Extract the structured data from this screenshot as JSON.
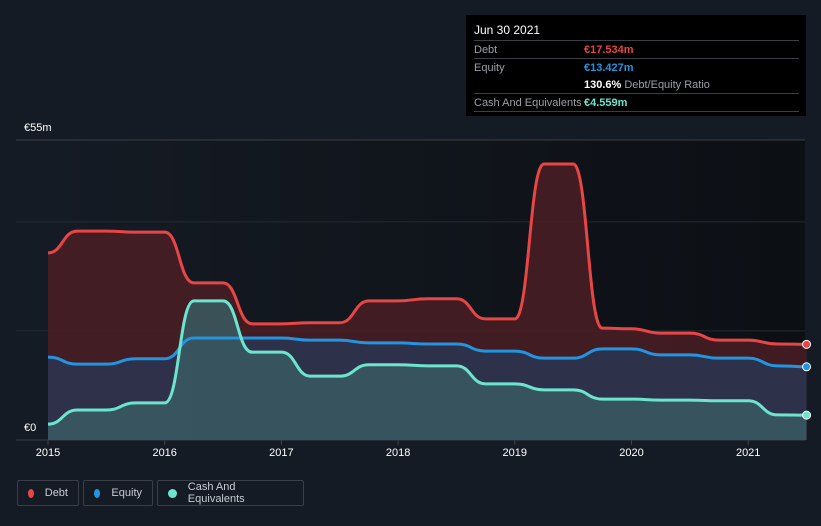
{
  "tooltip": {
    "date": "Jun 30 2021",
    "debt_label": "Debt",
    "debt_value": "€17.534m",
    "equity_label": "Equity",
    "equity_value": "€13.427m",
    "ratio_value": "130.6%",
    "ratio_label": "Debt/Equity Ratio",
    "cash_label": "Cash And Equivalents",
    "cash_value": "€4.559m"
  },
  "legend": [
    {
      "label": "Debt",
      "color": "#e84545"
    },
    {
      "label": "Equity",
      "color": "#2394df"
    },
    {
      "label": "Cash And Equivalents",
      "color": "#6ce5d0"
    }
  ],
  "chart_data": {
    "type": "area",
    "title": "",
    "xlabel": "",
    "ylabel": "",
    "unit": "€m",
    "ylim": [
      0,
      55
    ],
    "xlim": [
      2014.85,
      2021.5
    ],
    "ytick_labels": [
      {
        "value": 55,
        "label": "€55m"
      },
      {
        "value": 0,
        "label": "€0"
      }
    ],
    "gridlines": [
      20,
      40,
      55
    ],
    "xtick_labels": [
      {
        "value": 2015,
        "label": "2015"
      },
      {
        "value": 2016,
        "label": "2016"
      },
      {
        "value": 2017,
        "label": "2017"
      },
      {
        "value": 2018,
        "label": "2018"
      },
      {
        "value": 2019,
        "label": "2019"
      },
      {
        "value": 2020,
        "label": "2020"
      },
      {
        "value": 2021,
        "label": "2021"
      }
    ],
    "x": [
      2015.0,
      2015.25,
      2015.5,
      2015.75,
      2016.0,
      2016.25,
      2016.5,
      2016.75,
      2017.0,
      2017.25,
      2017.5,
      2017.75,
      2018.0,
      2018.25,
      2018.5,
      2018.75,
      2019.0,
      2019.25,
      2019.5,
      2019.75,
      2020.0,
      2020.25,
      2020.5,
      2020.75,
      2021.0,
      2021.25,
      2021.5
    ],
    "series": [
      {
        "name": "Debt",
        "color": "#e84545",
        "fill": "#4a1f25",
        "values": [
          34.3,
          38.3,
          38.3,
          38.1,
          38.1,
          28.8,
          28.8,
          21.3,
          21.3,
          21.5,
          21.5,
          25.5,
          25.5,
          25.9,
          25.9,
          22.2,
          22.2,
          50.6,
          50.6,
          20.5,
          20.4,
          19.6,
          19.6,
          18.3,
          18.3,
          17.6,
          17.534
        ]
      },
      {
        "name": "Equity",
        "color": "#2394df",
        "fill": "#2a3550",
        "values": [
          15.2,
          13.9,
          13.9,
          14.9,
          14.9,
          18.7,
          18.7,
          18.7,
          18.7,
          18.3,
          18.3,
          17.8,
          17.8,
          17.6,
          17.6,
          16.3,
          16.3,
          15.0,
          15.0,
          16.7,
          16.7,
          15.6,
          15.6,
          15.0,
          15.0,
          13.6,
          13.427
        ]
      },
      {
        "name": "Cash And Equivalents",
        "color": "#6ce5d0",
        "fill": "#3a5a62",
        "values": [
          2.9,
          5.5,
          5.5,
          6.8,
          6.8,
          25.5,
          25.5,
          16.1,
          16.1,
          11.7,
          11.7,
          13.8,
          13.8,
          13.6,
          13.6,
          10.3,
          10.3,
          9.2,
          9.2,
          7.5,
          7.5,
          7.3,
          7.3,
          7.2,
          7.2,
          4.6,
          4.559
        ]
      }
    ],
    "legend_position": "bottom-left"
  }
}
